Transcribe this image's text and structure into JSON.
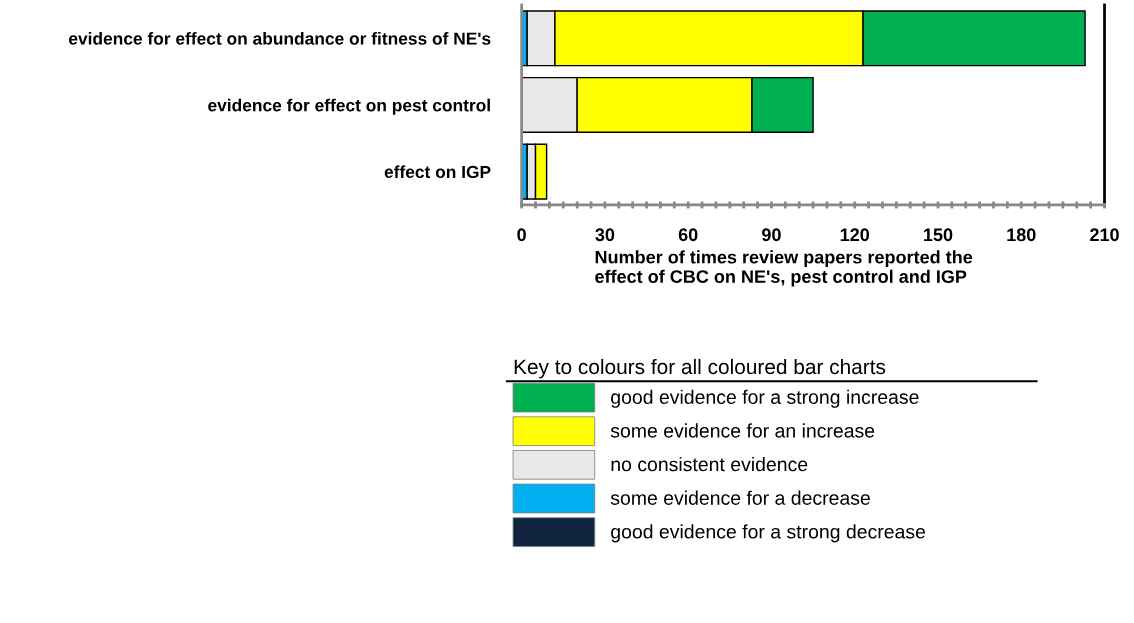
{
  "chart_data": {
    "type": "bar",
    "orientation": "horizontal",
    "stacked": true,
    "categories": [
      "evidence for effect on abundance or fitness of NE's",
      "evidence for effect on pest control",
      "effect on IGP"
    ],
    "xlabel": "Number of times review papers reported the\neffect of CBC on NE's, pest control and IGP",
    "legend_title": "Key to colours for all coloured bar charts",
    "legend": "bottom",
    "xlim": [
      0,
      210
    ],
    "xticks": [
      0,
      {
        "value": 5,
        "label": null
      },
      {
        "value": 10,
        "label": null
      },
      {
        "value": 15,
        "label": null
      },
      {
        "value": 20,
        "label": null
      },
      {
        "value": 25,
        "label": null
      },
      30,
      {
        "value": 35,
        "label": null
      },
      {
        "value": 40,
        "label": null
      },
      {
        "value": 45,
        "label": null
      },
      {
        "value": 50,
        "label": null
      },
      {
        "value": 55,
        "label": null
      },
      60,
      {
        "value": 65,
        "label": null
      },
      {
        "value": 70,
        "label": null
      },
      {
        "value": 75,
        "label": null
      },
      {
        "value": 80,
        "label": null
      },
      {
        "value": 85,
        "label": null
      },
      90,
      {
        "value": 95,
        "label": null
      },
      {
        "value": 100,
        "label": null
      },
      {
        "value": 105,
        "label": null
      },
      {
        "value": 110,
        "label": null
      },
      {
        "value": 115,
        "label": null
      },
      120,
      {
        "value": 125,
        "label": null
      },
      {
        "value": 130,
        "label": null
      },
      {
        "value": 135,
        "label": null
      },
      {
        "value": 140,
        "label": null
      },
      {
        "value": 145,
        "label": null
      },
      150,
      {
        "value": 155,
        "label": null
      },
      {
        "value": 160,
        "label": null
      },
      {
        "value": 165,
        "label": null
      },
      {
        "value": 170,
        "label": null
      },
      {
        "value": 175,
        "label": null
      },
      180,
      {
        "value": 185,
        "label": null
      },
      {
        "value": 190,
        "label": null
      },
      {
        "value": 195,
        "label": null
      },
      {
        "value": 200,
        "label": null
      },
      {
        "value": 205,
        "label": null
      },
      210
    ],
    "grid": false,
    "series": [
      {
        "name": "good evidence for a strong decrease",
        "color": "#10243f",
        "values": [
          null,
          null,
          null
        ]
      },
      {
        "name": "some evidence for a decrease",
        "color": "#00b0f0",
        "values": [
          2,
          null,
          2
        ]
      },
      {
        "name": "no consistent evidence",
        "color": "#e8e8e8",
        "values": [
          10,
          20,
          3
        ]
      },
      {
        "name": "some evidence for an increase",
        "color": "#ffff00",
        "values": [
          111,
          63,
          4
        ]
      },
      {
        "name": "good evidence for a strong increase",
        "color": "#00b050",
        "values": [
          80,
          22,
          null
        ]
      }
    ]
  }
}
